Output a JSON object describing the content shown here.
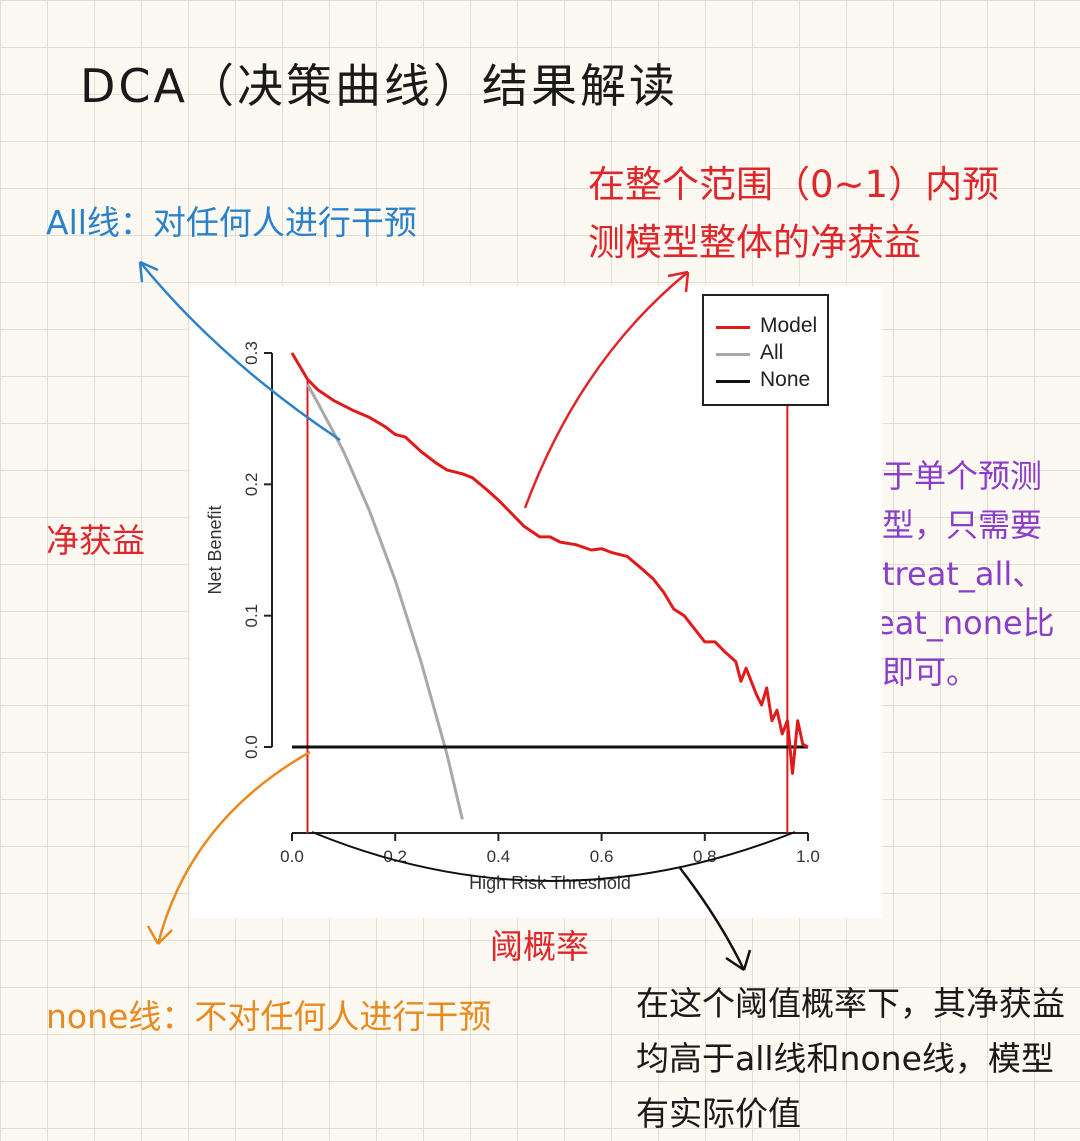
{
  "title": "DCA（决策曲线）结果解读",
  "annotations": {
    "all_line": "All线：对任何人进行干预",
    "full_range": "在整个范围（0~1）内预测模型整体的净获益",
    "net_benefit": "净获益",
    "single_model": "对于单个预测模型，只需要和treat_all、treat_none比较即可。",
    "threshold_prob": "阈概率",
    "none_line": "none线：不对任何人进行干预",
    "conclusion": "在这个阈值概率下，其净获益均高于all线和none线，模型有实际价值"
  },
  "colors": {
    "model": "#e01b1b",
    "all": "#a8a8a8",
    "none": "#111111",
    "blue_note": "#2b82c9",
    "red_note": "#e0262a",
    "purple_note": "#8a3ec9",
    "orange_note": "#e88a1f"
  },
  "chart_data": {
    "type": "line",
    "xlabel": "High Risk Threshold",
    "ylabel": "Net Benefit",
    "xlim": [
      0,
      1
    ],
    "ylim": [
      -0.065,
      0.3
    ],
    "x_ticks": [
      "0.0",
      "0.2",
      "0.4",
      "0.6",
      "0.8",
      "1.0"
    ],
    "y_ticks": [
      "0.0",
      "0.1",
      "0.2",
      "0.3"
    ],
    "legend": {
      "position": "top-right",
      "entries": [
        "Model",
        "All",
        "None"
      ]
    },
    "series": [
      {
        "name": "Model",
        "color": "#e01b1b",
        "x": [
          0.0,
          0.03,
          0.05,
          0.08,
          0.12,
          0.15,
          0.18,
          0.2,
          0.22,
          0.25,
          0.28,
          0.3,
          0.33,
          0.35,
          0.38,
          0.4,
          0.42,
          0.45,
          0.48,
          0.5,
          0.52,
          0.55,
          0.58,
          0.6,
          0.62,
          0.65,
          0.68,
          0.7,
          0.72,
          0.74,
          0.76,
          0.78,
          0.8,
          0.82,
          0.84,
          0.86,
          0.87,
          0.88,
          0.9,
          0.91,
          0.92,
          0.93,
          0.94,
          0.95,
          0.96,
          0.97,
          0.98,
          0.99,
          1.0
        ],
        "y": [
          0.3,
          0.28,
          0.272,
          0.264,
          0.256,
          0.251,
          0.244,
          0.238,
          0.236,
          0.225,
          0.216,
          0.211,
          0.208,
          0.205,
          0.195,
          0.188,
          0.18,
          0.168,
          0.16,
          0.16,
          0.156,
          0.154,
          0.15,
          0.151,
          0.148,
          0.145,
          0.135,
          0.128,
          0.118,
          0.105,
          0.1,
          0.09,
          0.08,
          0.08,
          0.072,
          0.065,
          0.05,
          0.06,
          0.04,
          0.032,
          0.045,
          0.02,
          0.028,
          0.01,
          0.02,
          -0.02,
          0.02,
          0.002,
          0.0
        ]
      },
      {
        "name": "All",
        "color": "#a8a8a8",
        "x": [
          0.03,
          0.05,
          0.08,
          0.1,
          0.15,
          0.2,
          0.25,
          0.3,
          0.33
        ],
        "y": [
          0.276,
          0.262,
          0.24,
          0.225,
          0.18,
          0.127,
          0.065,
          -0.005,
          -0.055
        ]
      },
      {
        "name": "None",
        "color": "#111111",
        "x": [
          0.0,
          1.0
        ],
        "y": [
          0.0,
          0.0
        ]
      }
    ],
    "reference_lines_x": [
      0.03,
      0.96
    ]
  }
}
